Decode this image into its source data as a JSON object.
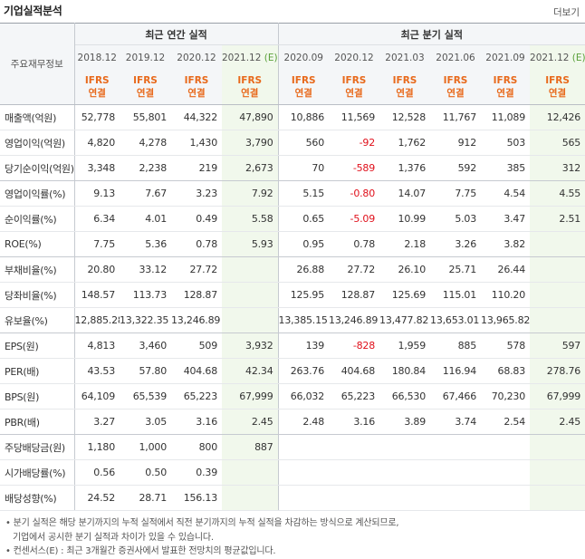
{
  "header": {
    "title": "기업실적분석",
    "more_link": "더보기"
  },
  "table": {
    "corner_label": "주요재무정보",
    "group_annual": "최근 연간 실적",
    "group_quarter": "최근 분기 실적",
    "annual_periods": [
      "2018.12",
      "2019.12",
      "2020.12",
      "2021.12"
    ],
    "quarter_periods": [
      "2020.09",
      "2020.12",
      "2021.03",
      "2021.06",
      "2021.09",
      "2021.12"
    ],
    "estimate_mark": "(E)",
    "ifrs_line1": "IFRS",
    "ifrs_line2": "연결",
    "rows": [
      {
        "label": "매출액(억원)",
        "values": [
          "52,778",
          "55,801",
          "44,322",
          "47,890",
          "10,886",
          "11,569",
          "12,528",
          "11,767",
          "11,089",
          "12,426"
        ]
      },
      {
        "label": "영업이익(억원)",
        "values": [
          "4,820",
          "4,278",
          "1,430",
          "3,790",
          "560",
          "-92",
          "1,762",
          "912",
          "503",
          "565"
        ]
      },
      {
        "label": "당기순이익(억원)",
        "values": [
          "3,348",
          "2,238",
          "219",
          "2,673",
          "70",
          "-589",
          "1,376",
          "592",
          "385",
          "312"
        ]
      },
      {
        "label": "영업이익률(%)",
        "values": [
          "9.13",
          "7.67",
          "3.23",
          "7.92",
          "5.15",
          "-0.80",
          "14.07",
          "7.75",
          "4.54",
          "4.55"
        ]
      },
      {
        "label": "순이익률(%)",
        "values": [
          "6.34",
          "4.01",
          "0.49",
          "5.58",
          "0.65",
          "-5.09",
          "10.99",
          "5.03",
          "3.47",
          "2.51"
        ]
      },
      {
        "label": "ROE(%)",
        "values": [
          "7.75",
          "5.36",
          "0.78",
          "5.93",
          "0.95",
          "0.78",
          "2.18",
          "3.26",
          "3.82",
          ""
        ]
      },
      {
        "label": "부채비율(%)",
        "values": [
          "20.80",
          "33.12",
          "27.72",
          "",
          "26.88",
          "27.72",
          "26.10",
          "25.71",
          "26.44",
          ""
        ]
      },
      {
        "label": "당좌비율(%)",
        "values": [
          "148.57",
          "113.73",
          "128.87",
          "",
          "125.95",
          "128.87",
          "125.69",
          "115.01",
          "110.20",
          ""
        ]
      },
      {
        "label": "유보율(%)",
        "values": [
          "12,885.28",
          "13,322.35",
          "13,246.89",
          "",
          "13,385.15",
          "13,246.89",
          "13,477.82",
          "13,653.01",
          "13,965.82",
          ""
        ]
      },
      {
        "label": "EPS(원)",
        "values": [
          "4,813",
          "3,460",
          "509",
          "3,932",
          "139",
          "-828",
          "1,959",
          "885",
          "578",
          "597"
        ]
      },
      {
        "label": "PER(배)",
        "values": [
          "43.53",
          "57.80",
          "404.68",
          "42.34",
          "263.76",
          "404.68",
          "180.84",
          "116.94",
          "68.83",
          "278.76"
        ]
      },
      {
        "label": "BPS(원)",
        "values": [
          "64,109",
          "65,539",
          "65,223",
          "67,999",
          "66,032",
          "65,223",
          "66,530",
          "67,466",
          "70,230",
          "67,999"
        ]
      },
      {
        "label": "PBR(배)",
        "values": [
          "3.27",
          "3.05",
          "3.16",
          "2.45",
          "2.48",
          "3.16",
          "3.89",
          "3.74",
          "2.54",
          "2.45"
        ]
      },
      {
        "label": "주당배당금(원)",
        "values": [
          "1,180",
          "1,000",
          "800",
          "887",
          "",
          "",
          "",
          "",
          "",
          ""
        ]
      },
      {
        "label": "시가배당률(%)",
        "values": [
          "0.56",
          "0.50",
          "0.39",
          "",
          "",
          "",
          "",
          "",
          "",
          ""
        ]
      },
      {
        "label": "배당성향(%)",
        "values": [
          "24.52",
          "28.71",
          "156.13",
          "",
          "",
          "",
          "",
          "",
          "",
          ""
        ]
      }
    ]
  },
  "footnotes": {
    "line1": "• 분기 실적은 해당 분기까지의 누적 실적에서 직전 분기까지의 누적 실적을 차감하는 방식으로 계산되므로,",
    "line2": "기업에서 공시한 분기 실적과 차이가 있을 수 있습니다.",
    "line3": "• 컨센서스(E) : 최근 3개월간 증권사에서 발표한 전망치의 평균값입니다."
  },
  "colors": {
    "negative": "#e0101b",
    "ifrs": "#e8691b",
    "estimate_bg": "#f1f8ec",
    "estimate_mark": "#5aa03a"
  }
}
